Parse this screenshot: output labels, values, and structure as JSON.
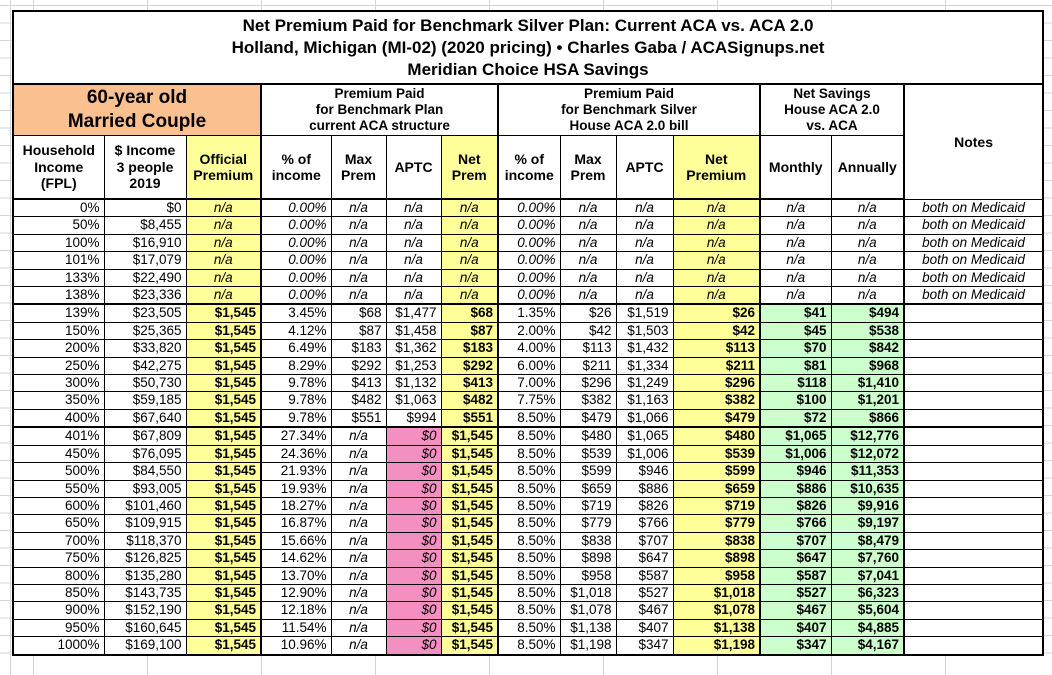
{
  "page": {
    "title_lines": [
      "Net Premium Paid for Benchmark Silver Plan: Current ACA vs. ACA 2.0",
      "Holland, Michigan (MI-02) (2020 pricing) • Charles Gaba / ACASignups.net",
      "Meridian Choice HSA Savings"
    ]
  },
  "corner": {
    "line1": "60-year old",
    "line2": "Married Couple"
  },
  "groups": {
    "aca": "Premium Paid\nfor Benchmark Plan\ncurrent ACA structure",
    "house": "Premium Paid\nfor Benchmark Silver\nHouse ACA 2.0 bill",
    "savings": "Net Savings\nHouse ACA 2.0\nvs. ACA",
    "notes": "Notes"
  },
  "columns": [
    "Household\nIncome\n(FPL)",
    "$ Income\n3 people\n2019",
    "Official\nPremium",
    "% of\nincome",
    "Max\nPrem",
    "APTC",
    "Net\nPrem",
    "% of\nincome",
    "Max\nPrem",
    "APTC",
    "Net\nPremium",
    "Monthly",
    "Annually"
  ],
  "colors": {
    "header_orange": "#FAC090",
    "highlight_yellow": "#FFFF99",
    "no_aptc_pink": "#F48FC2",
    "savings_green": "#CCFFCC"
  },
  "rows": [
    {
      "type": "medicaid",
      "cells": [
        "0%",
        "$0",
        "n/a",
        "0.00%",
        "n/a",
        "n/a",
        "n/a",
        "0.00%",
        "n/a",
        "n/a",
        "n/a",
        "n/a",
        "n/a",
        "both on Medicaid"
      ]
    },
    {
      "type": "medicaid",
      "cells": [
        "50%",
        "$8,455",
        "n/a",
        "0.00%",
        "n/a",
        "n/a",
        "n/a",
        "0.00%",
        "n/a",
        "n/a",
        "n/a",
        "n/a",
        "n/a",
        "both on Medicaid"
      ]
    },
    {
      "type": "medicaid",
      "cells": [
        "100%",
        "$16,910",
        "n/a",
        "0.00%",
        "n/a",
        "n/a",
        "n/a",
        "0.00%",
        "n/a",
        "n/a",
        "n/a",
        "n/a",
        "n/a",
        "both on Medicaid"
      ]
    },
    {
      "type": "medicaid",
      "cells": [
        "101%",
        "$17,079",
        "n/a",
        "0.00%",
        "n/a",
        "n/a",
        "n/a",
        "0.00%",
        "n/a",
        "n/a",
        "n/a",
        "n/a",
        "n/a",
        "both on Medicaid"
      ]
    },
    {
      "type": "medicaid",
      "cells": [
        "133%",
        "$22,490",
        "n/a",
        "0.00%",
        "n/a",
        "n/a",
        "n/a",
        "0.00%",
        "n/a",
        "n/a",
        "n/a",
        "n/a",
        "n/a",
        "both on Medicaid"
      ]
    },
    {
      "type": "medicaid",
      "cells": [
        "138%",
        "$23,336",
        "n/a",
        "0.00%",
        "n/a",
        "n/a",
        "n/a",
        "0.00%",
        "n/a",
        "n/a",
        "n/a",
        "n/a",
        "n/a",
        "both on Medicaid"
      ]
    },
    {
      "type": "aca",
      "cells": [
        "139%",
        "$23,505",
        "$1,545",
        "3.45%",
        "$68",
        "$1,477",
        "$68",
        "1.35%",
        "$26",
        "$1,519",
        "$26",
        "$41",
        "$494",
        ""
      ]
    },
    {
      "type": "aca",
      "cells": [
        "150%",
        "$25,365",
        "$1,545",
        "4.12%",
        "$87",
        "$1,458",
        "$87",
        "2.00%",
        "$42",
        "$1,503",
        "$42",
        "$45",
        "$538",
        ""
      ]
    },
    {
      "type": "aca",
      "cells": [
        "200%",
        "$33,820",
        "$1,545",
        "6.49%",
        "$183",
        "$1,362",
        "$183",
        "4.00%",
        "$113",
        "$1,432",
        "$113",
        "$70",
        "$842",
        ""
      ]
    },
    {
      "type": "aca",
      "cells": [
        "250%",
        "$42,275",
        "$1,545",
        "8.29%",
        "$292",
        "$1,253",
        "$292",
        "6.00%",
        "$211",
        "$1,334",
        "$211",
        "$81",
        "$968",
        ""
      ]
    },
    {
      "type": "aca",
      "cells": [
        "300%",
        "$50,730",
        "$1,545",
        "9.78%",
        "$413",
        "$1,132",
        "$413",
        "7.00%",
        "$296",
        "$1,249",
        "$296",
        "$118",
        "$1,410",
        ""
      ]
    },
    {
      "type": "aca",
      "cells": [
        "350%",
        "$59,185",
        "$1,545",
        "9.78%",
        "$482",
        "$1,063",
        "$482",
        "7.75%",
        "$382",
        "$1,163",
        "$382",
        "$100",
        "$1,201",
        ""
      ]
    },
    {
      "type": "aca",
      "cells": [
        "400%",
        "$67,640",
        "$1,545",
        "9.78%",
        "$551",
        "$994",
        "$551",
        "8.50%",
        "$479",
        "$1,066",
        "$479",
        "$72",
        "$866",
        ""
      ]
    },
    {
      "type": "noaptc",
      "cells": [
        "401%",
        "$67,809",
        "$1,545",
        "27.34%",
        "n/a",
        "$0",
        "$1,545",
        "8.50%",
        "$480",
        "$1,065",
        "$480",
        "$1,065",
        "$12,776",
        ""
      ]
    },
    {
      "type": "noaptc",
      "cells": [
        "450%",
        "$76,095",
        "$1,545",
        "24.36%",
        "n/a",
        "$0",
        "$1,545",
        "8.50%",
        "$539",
        "$1,006",
        "$539",
        "$1,006",
        "$12,072",
        ""
      ]
    },
    {
      "type": "noaptc",
      "cells": [
        "500%",
        "$84,550",
        "$1,545",
        "21.93%",
        "n/a",
        "$0",
        "$1,545",
        "8.50%",
        "$599",
        "$946",
        "$599",
        "$946",
        "$11,353",
        ""
      ]
    },
    {
      "type": "noaptc",
      "cells": [
        "550%",
        "$93,005",
        "$1,545",
        "19.93%",
        "n/a",
        "$0",
        "$1,545",
        "8.50%",
        "$659",
        "$886",
        "$659",
        "$886",
        "$10,635",
        ""
      ]
    },
    {
      "type": "noaptc",
      "cells": [
        "600%",
        "$101,460",
        "$1,545",
        "18.27%",
        "n/a",
        "$0",
        "$1,545",
        "8.50%",
        "$719",
        "$826",
        "$719",
        "$826",
        "$9,916",
        ""
      ]
    },
    {
      "type": "noaptc",
      "cells": [
        "650%",
        "$109,915",
        "$1,545",
        "16.87%",
        "n/a",
        "$0",
        "$1,545",
        "8.50%",
        "$779",
        "$766",
        "$779",
        "$766",
        "$9,197",
        ""
      ]
    },
    {
      "type": "noaptc",
      "cells": [
        "700%",
        "$118,370",
        "$1,545",
        "15.66%",
        "n/a",
        "$0",
        "$1,545",
        "8.50%",
        "$838",
        "$707",
        "$838",
        "$707",
        "$8,479",
        ""
      ]
    },
    {
      "type": "noaptc",
      "cells": [
        "750%",
        "$126,825",
        "$1,545",
        "14.62%",
        "n/a",
        "$0",
        "$1,545",
        "8.50%",
        "$898",
        "$647",
        "$898",
        "$647",
        "$7,760",
        ""
      ]
    },
    {
      "type": "noaptc",
      "cells": [
        "800%",
        "$135,280",
        "$1,545",
        "13.70%",
        "n/a",
        "$0",
        "$1,545",
        "8.50%",
        "$958",
        "$587",
        "$958",
        "$587",
        "$7,041",
        ""
      ]
    },
    {
      "type": "noaptc",
      "cells": [
        "850%",
        "$143,735",
        "$1,545",
        "12.90%",
        "n/a",
        "$0",
        "$1,545",
        "8.50%",
        "$1,018",
        "$527",
        "$1,018",
        "$527",
        "$6,323",
        ""
      ]
    },
    {
      "type": "noaptc",
      "cells": [
        "900%",
        "$152,190",
        "$1,545",
        "12.18%",
        "n/a",
        "$0",
        "$1,545",
        "8.50%",
        "$1,078",
        "$467",
        "$1,078",
        "$467",
        "$5,604",
        ""
      ]
    },
    {
      "type": "noaptc",
      "cells": [
        "950%",
        "$160,645",
        "$1,545",
        "11.54%",
        "n/a",
        "$0",
        "$1,545",
        "8.50%",
        "$1,138",
        "$407",
        "$1,138",
        "$407",
        "$4,885",
        ""
      ]
    },
    {
      "type": "noaptc",
      "cells": [
        "1000%",
        "$169,100",
        "$1,545",
        "10.96%",
        "n/a",
        "$0",
        "$1,545",
        "8.50%",
        "$1,198",
        "$347",
        "$1,198",
        "$347",
        "$4,167",
        ""
      ]
    }
  ]
}
